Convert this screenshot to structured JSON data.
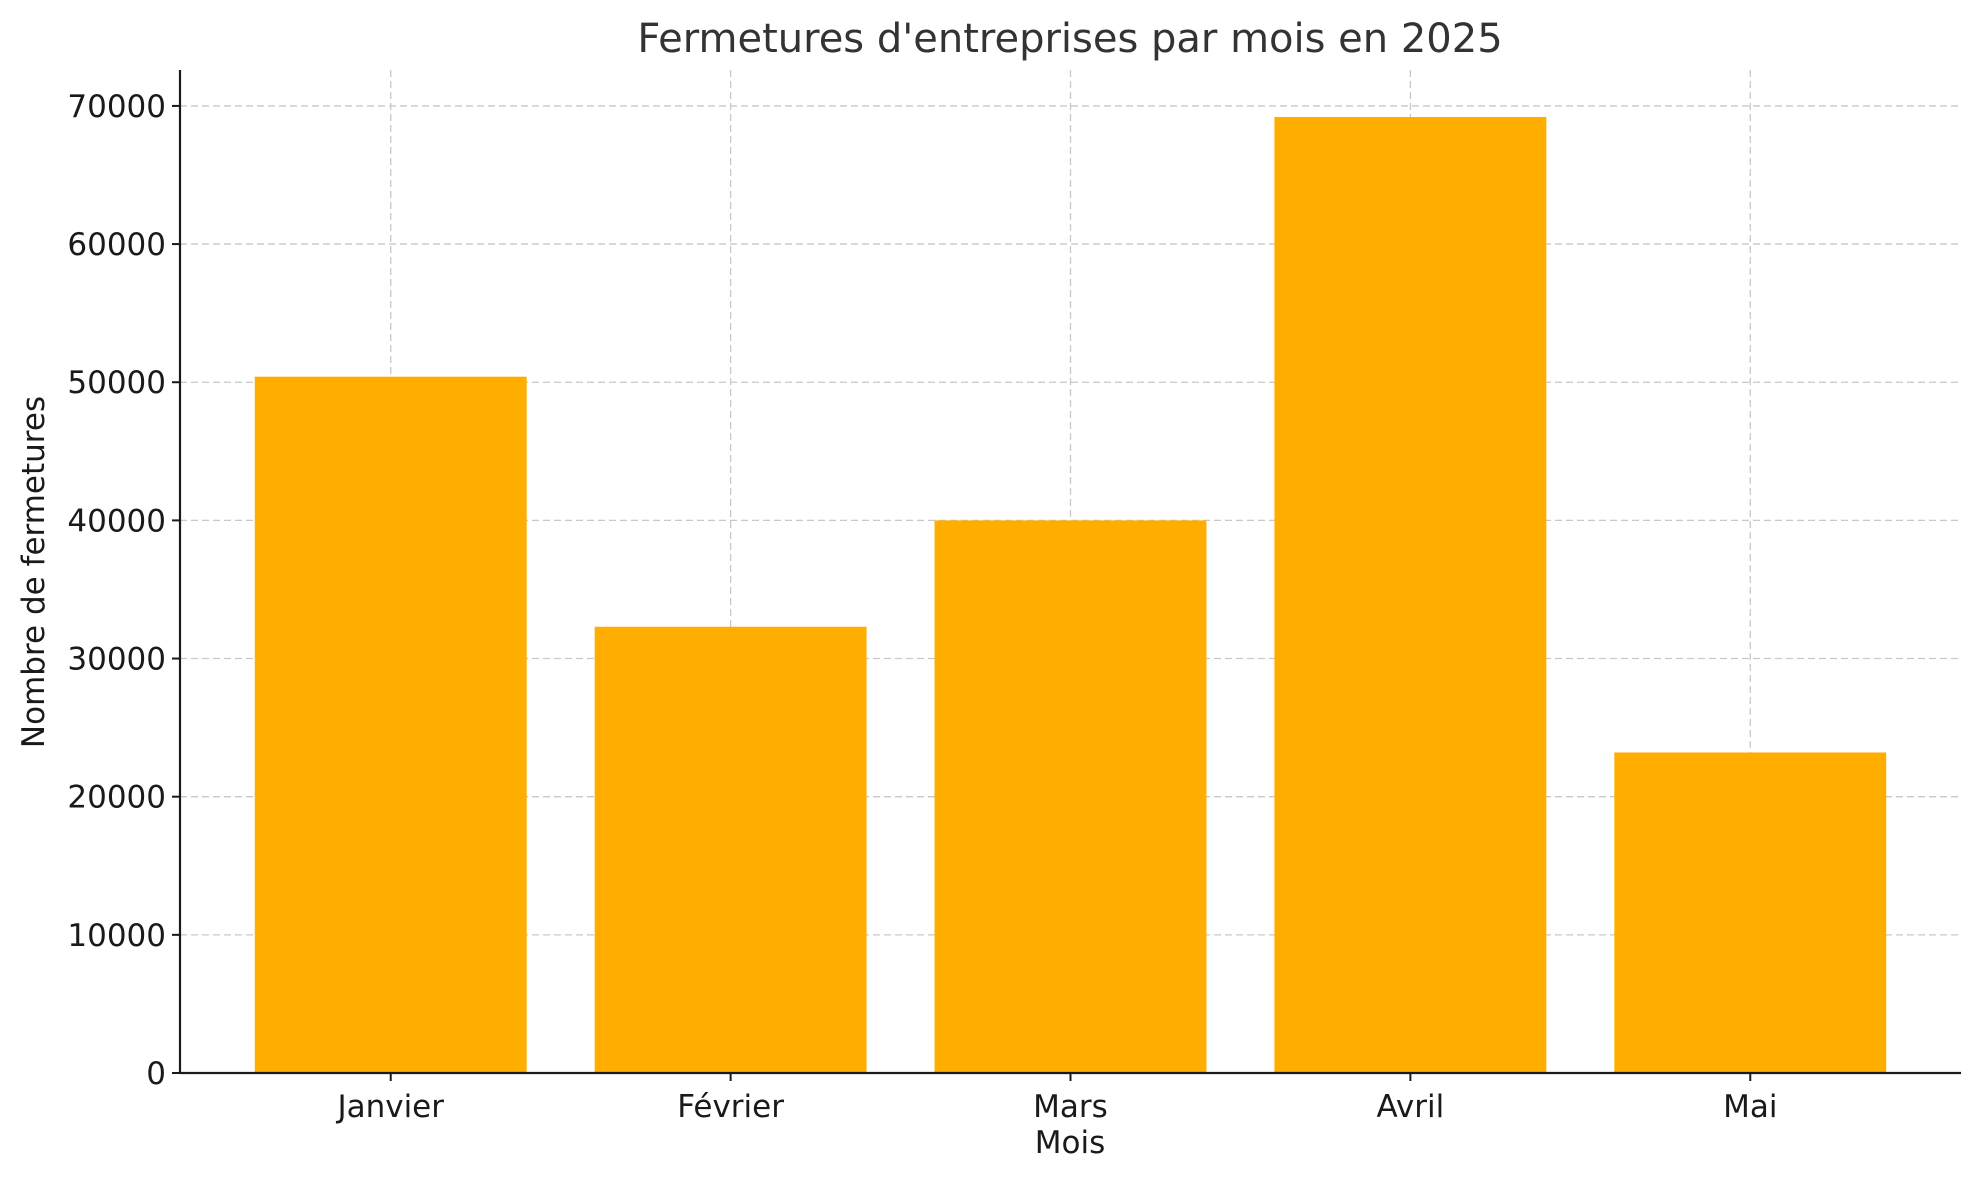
{
  "chart_data": {
    "type": "bar",
    "title": "Fermetures d'entreprises par mois en 2025",
    "xlabel": "Mois",
    "ylabel": "Nombre de fermetures",
    "categories": [
      "Janvier",
      "Février",
      "Mars",
      "Avril",
      "Mai"
    ],
    "values": [
      50400,
      32300,
      40000,
      69200,
      23200
    ],
    "ylim": [
      0,
      72600
    ],
    "yticks": [
      0,
      10000,
      20000,
      30000,
      40000,
      50000,
      60000,
      70000
    ],
    "grid": true,
    "legend": "none",
    "bar_color": "#FFAE00"
  }
}
